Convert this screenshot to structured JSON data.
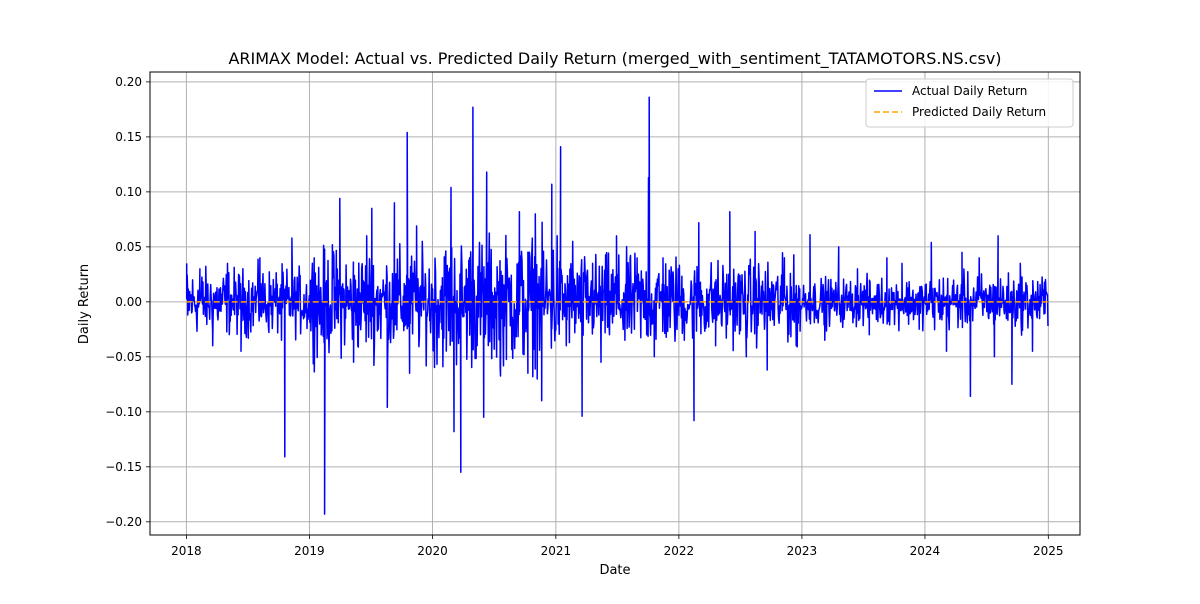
{
  "chart_data": {
    "type": "line",
    "title": "ARIMAX Model: Actual vs. Predicted Daily Return (merged_with_sentiment_TATAMOTORS.NS.csv)",
    "xlabel": "Date",
    "ylabel": "Daily Return",
    "x_range": [
      "2018-01-01",
      "2024-12-31"
    ],
    "xlim": [
      "2017-09-15",
      "2025-04-05"
    ],
    "ylim": [
      -0.212,
      0.209
    ],
    "grid": true,
    "legend_position": "upper right",
    "x_ticks": [
      "2018",
      "2019",
      "2020",
      "2021",
      "2022",
      "2023",
      "2024",
      "2025"
    ],
    "y_ticks": [
      "0.20",
      "0.15",
      "0.10",
      "0.05",
      "0.00",
      "−0.05",
      "−0.10",
      "−0.15",
      "−0.20"
    ],
    "series": [
      {
        "name": "Actual Daily Return",
        "color": "#0000ff",
        "style": "solid",
        "x": [
          "2018-01-02",
          "2018-01-05",
          "2018-02-10",
          "2018-03-20",
          "2018-05-03",
          "2018-06-12",
          "2018-08-07",
          "2018-10-10",
          "2018-10-20",
          "2018-11-10",
          "2019-01-15",
          "2019-02-05",
          "2019-02-15",
          "2019-03-10",
          "2019-04-01",
          "2019-05-12",
          "2019-06-20",
          "2019-07-05",
          "2019-08-20",
          "2019-09-10",
          "2019-10-18",
          "2019-10-25",
          "2019-11-15",
          "2020-01-15",
          "2020-02-25",
          "2020-03-05",
          "2020-03-25",
          "2020-04-20",
          "2020-04-30",
          "2020-06-01",
          "2020-06-10",
          "2020-07-20",
          "2020-09-15",
          "2020-10-10",
          "2020-11-01",
          "2020-11-20",
          "2020-12-20",
          "2021-01-05",
          "2021-01-15",
          "2021-02-01",
          "2021-02-20",
          "2021-03-20",
          "2021-04-20",
          "2021-05-15",
          "2021-06-30",
          "2021-07-25",
          "2021-08-30",
          "2021-10-03",
          "2021-10-05",
          "2021-10-20",
          "2021-11-15",
          "2021-12-30",
          "2022-02-15",
          "2022-03-01",
          "2022-04-20",
          "2022-06-01",
          "2022-07-20",
          "2022-08-15",
          "2022-09-20",
          "2022-11-10",
          "2022-12-15",
          "2023-01-25",
          "2023-03-10",
          "2023-04-20",
          "2023-06-15",
          "2023-07-20",
          "2023-09-10",
          "2023-10-25",
          "2023-12-15",
          "2024-01-20",
          "2024-03-05",
          "2024-04-20",
          "2024-05-15",
          "2024-06-10",
          "2024-07-25",
          "2024-08-05",
          "2024-09-15",
          "2024-10-10",
          "2024-11-15",
          "2024-12-31"
        ],
        "y": [
          0.035,
          -0.012,
          0.03,
          -0.04,
          0.035,
          -0.045,
          0.04,
          -0.035,
          -0.141,
          0.058,
          0.04,
          -0.03,
          -0.193,
          0.052,
          0.094,
          -0.055,
          0.06,
          0.085,
          -0.096,
          0.09,
          0.154,
          -0.065,
          0.069,
          -0.03,
          0.104,
          -0.118,
          -0.155,
          0.04,
          0.177,
          -0.105,
          0.118,
          -0.06,
          0.082,
          -0.065,
          0.08,
          -0.09,
          0.107,
          0.06,
          0.141,
          -0.04,
          0.055,
          -0.104,
          0.035,
          -0.055,
          0.06,
          -0.035,
          0.04,
          0.113,
          0.186,
          -0.05,
          0.04,
          0.03,
          -0.108,
          0.072,
          -0.04,
          0.082,
          -0.05,
          0.064,
          -0.062,
          0.04,
          -0.04,
          0.061,
          -0.035,
          0.05,
          0.03,
          -0.03,
          0.04,
          0.035,
          -0.025,
          0.054,
          -0.045,
          0.045,
          -0.086,
          0.04,
          -0.05,
          0.06,
          -0.075,
          0.035,
          -0.045,
          -0.022
        ]
      },
      {
        "name": "Predicted Daily Return",
        "color": "#ffa500",
        "style": "dashed",
        "x": [
          "2018-01-02",
          "2024-12-31"
        ],
        "y": [
          0.0,
          0.0
        ]
      }
    ]
  }
}
